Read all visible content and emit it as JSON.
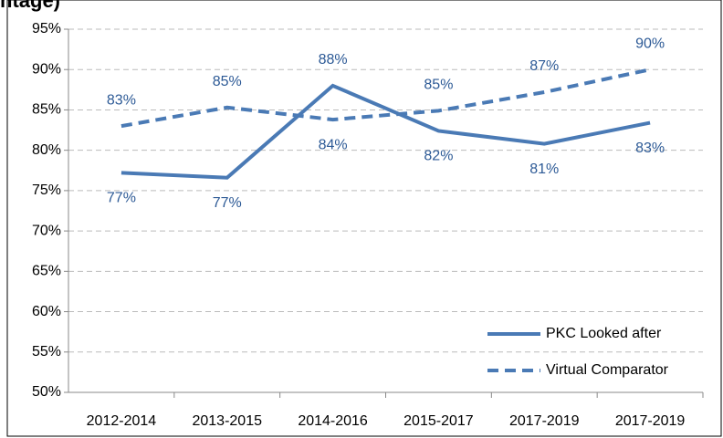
{
  "chart_data": {
    "type": "line",
    "title": "ntage)",
    "categories": [
      "2012-2014",
      "2013-2015",
      "2014-2016",
      "2015-2017",
      "2017-2019",
      "2017-2019"
    ],
    "series": [
      {
        "name": "PKC Looked after",
        "color": "#4a7ab5",
        "dash": false,
        "values": [
          77.2,
          76.6,
          88.0,
          82.4,
          80.8,
          83.4
        ],
        "value_labels": [
          "77%",
          "77%",
          "88%",
          "82%",
          "81%",
          "83%"
        ]
      },
      {
        "name": "Virtual Comparator",
        "color": "#4a7ab5",
        "dash": true,
        "values": [
          83.0,
          85.3,
          83.8,
          84.9,
          87.2,
          90.0
        ],
        "value_labels": [
          "83%",
          "85%",
          "84%",
          "85%",
          "87%",
          "90%"
        ]
      }
    ],
    "ylim": [
      50,
      95
    ],
    "yticks": [
      {
        "value": 50,
        "label": "50%"
      },
      {
        "value": 55,
        "label": "55%"
      },
      {
        "value": 60,
        "label": "60%"
      },
      {
        "value": 65,
        "label": "65%"
      },
      {
        "value": 70,
        "label": "70%"
      },
      {
        "value": 75,
        "label": "75%"
      },
      {
        "value": 80,
        "label": "80%"
      },
      {
        "value": 85,
        "label": "85%"
      },
      {
        "value": 90,
        "label": "90%"
      },
      {
        "value": 95,
        "label": "95%"
      }
    ],
    "grid": true,
    "legend": "lower right"
  }
}
